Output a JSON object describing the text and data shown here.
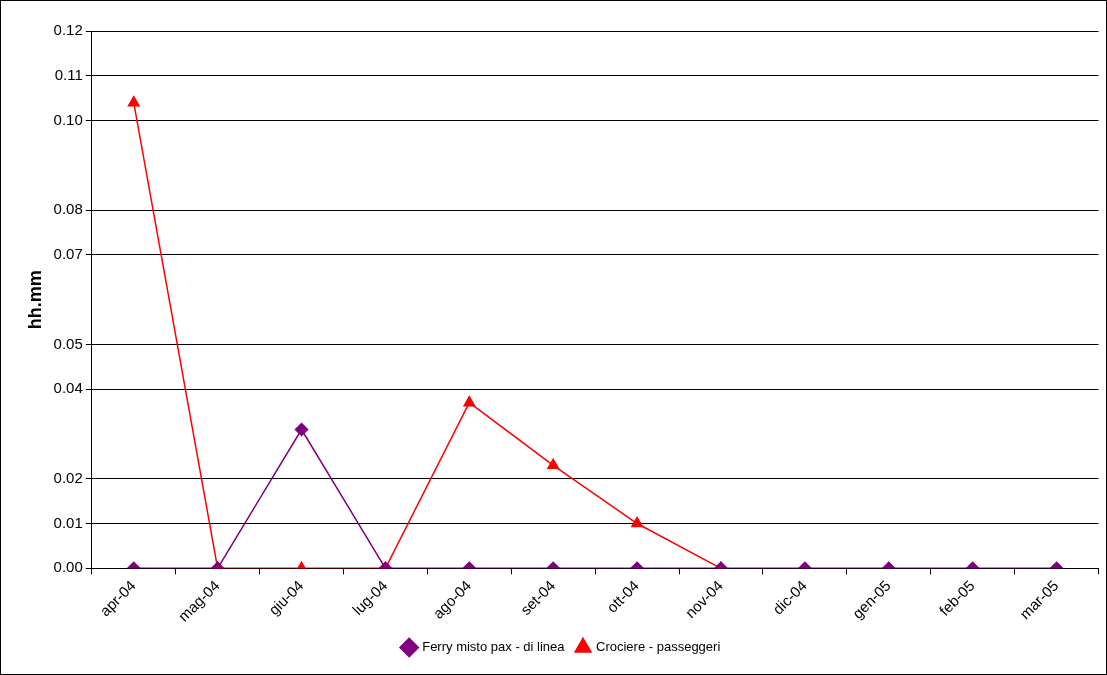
{
  "chart_data": {
    "type": "line",
    "ylabel": "hh.mm",
    "categories": [
      "apr-04",
      "mag-04",
      "giu-04",
      "lug-04",
      "ago-04",
      "set-04",
      "ott-04",
      "nov-04",
      "dic-04",
      "gen-05",
      "feb-05",
      "mar-05"
    ],
    "series": [
      {
        "name": "Ferry misto pax - di linea",
        "color": "#800080",
        "marker": "diamond",
        "values": [
          0,
          0,
          0.031,
          0,
          0,
          0,
          0,
          0,
          0,
          0,
          0,
          0
        ]
      },
      {
        "name": "Crociere - passeggeri",
        "color": "#ff0000",
        "marker": "triangle",
        "values": [
          0.104,
          0,
          0,
          0,
          0.037,
          0.023,
          0.01,
          0,
          null,
          null,
          null,
          null
        ]
      }
    ],
    "ylim": [
      0,
      0.12
    ],
    "yticks": [
      {
        "value": 0,
        "label": "0.00"
      },
      {
        "value": 0.01,
        "label": "0.01"
      },
      {
        "value": 0.02,
        "label": "0.02"
      },
      {
        "value": 0.04,
        "label": "0.04"
      },
      {
        "value": 0.05,
        "label": "0.05"
      },
      {
        "value": 0.07,
        "label": "0.07"
      },
      {
        "value": 0.08,
        "label": "0.08"
      },
      {
        "value": 0.1,
        "label": "0.10"
      },
      {
        "value": 0.11,
        "label": "0.11"
      },
      {
        "value": 0.12,
        "label": "0.12"
      }
    ],
    "grid": "y",
    "legend": "bottom",
    "line_style": "solid"
  }
}
